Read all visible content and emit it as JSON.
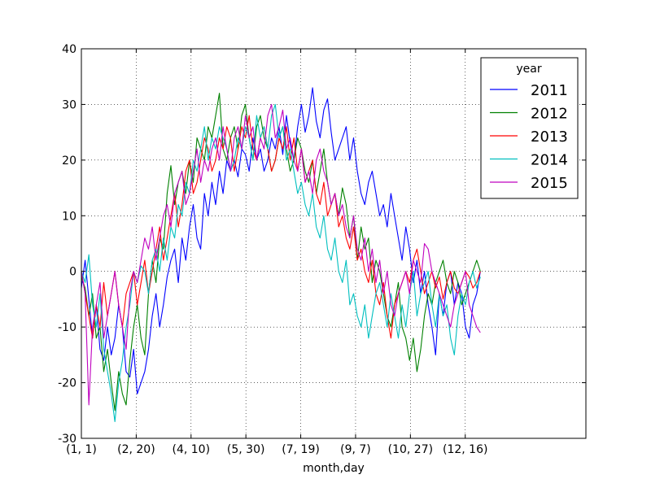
{
  "chart_data": {
    "type": "line",
    "xlabel": "month,day",
    "ylabel": "",
    "title": "",
    "ylim": [
      -30,
      40
    ],
    "yticks": [
      -30,
      -20,
      -10,
      0,
      10,
      20,
      30,
      40
    ],
    "x_day_range": [
      1,
      461
    ],
    "x_ticks": [
      {
        "label": "(1, 1)",
        "day": 1
      },
      {
        "label": "(2, 20)",
        "day": 51
      },
      {
        "label": "(4, 10)",
        "day": 101
      },
      {
        "label": "(5, 30)",
        "day": 151
      },
      {
        "label": "(7, 19)",
        "day": 201
      },
      {
        "label": "(9, 7)",
        "day": 251
      },
      {
        "label": "(10, 27)",
        "day": 301
      },
      {
        "label": "(12, 16)",
        "day": 351
      }
    ],
    "grid": true,
    "legend": {
      "title": "year",
      "position": "top-right"
    },
    "series": [
      {
        "name": "2011",
        "color": "#0000ff",
        "values": [
          -3,
          2,
          -5,
          -12,
          -6,
          -14,
          -16,
          -10,
          -15,
          -12,
          -6,
          -10,
          -18,
          -19,
          -14,
          -22,
          -20,
          -18,
          -14,
          -8,
          -4,
          -10,
          -6,
          -1,
          2,
          4,
          -2,
          6,
          2,
          8,
          12,
          6,
          4,
          14,
          10,
          16,
          12,
          18,
          14,
          20,
          18,
          20,
          17,
          22,
          21,
          18,
          24,
          20,
          22,
          18,
          20,
          24,
          22,
          26,
          21,
          28,
          23,
          20,
          26,
          30,
          25,
          28,
          33,
          27,
          24,
          29,
          31,
          25,
          20,
          22,
          24,
          26,
          20,
          24,
          18,
          14,
          12,
          16,
          18,
          14,
          10,
          12,
          8,
          14,
          10,
          6,
          2,
          8,
          4,
          -2,
          2,
          -4,
          0,
          -6,
          -10,
          -15,
          -4,
          -8,
          -2,
          0,
          -6,
          -2,
          -4,
          -10,
          -12,
          -6,
          -4,
          0
        ]
      },
      {
        "name": "2012",
        "color": "#008000",
        "values": [
          -1,
          -3,
          -8,
          -4,
          -12,
          -10,
          -18,
          -14,
          -20,
          -25,
          -18,
          -22,
          -24,
          -16,
          -10,
          -6,
          -12,
          -15,
          -4,
          2,
          -2,
          6,
          4,
          14,
          19,
          12,
          16,
          18,
          14,
          20,
          16,
          24,
          22,
          20,
          26,
          24,
          28,
          32,
          22,
          20,
          24,
          26,
          22,
          28,
          30,
          24,
          20,
          26,
          28,
          24,
          22,
          18,
          20,
          24,
          26,
          22,
          18,
          20,
          24,
          22,
          18,
          16,
          20,
          14,
          18,
          22,
          16,
          12,
          14,
          10,
          15,
          12,
          6,
          10,
          2,
          8,
          4,
          6,
          -2,
          2,
          0,
          -4,
          -8,
          -10,
          -6,
          -2,
          -10,
          -12,
          -16,
          -12,
          -18,
          -14,
          -8,
          -4,
          -6,
          -2,
          0,
          2,
          -2,
          -4,
          0,
          -2,
          -6,
          -4,
          -2,
          0,
          2,
          0
        ]
      },
      {
        "name": "2013",
        "color": "#ff0000",
        "values": [
          0,
          -4,
          -8,
          -12,
          -6,
          -10,
          -2,
          -8,
          -4,
          0,
          -6,
          -10,
          -4,
          -2,
          0,
          -6,
          -2,
          2,
          -4,
          0,
          4,
          8,
          2,
          6,
          10,
          14,
          8,
          12,
          18,
          20,
          14,
          16,
          20,
          24,
          22,
          18,
          20,
          24,
          22,
          26,
          24,
          18,
          22,
          26,
          24,
          28,
          22,
          20,
          24,
          26,
          22,
          18,
          20,
          24,
          22,
          26,
          20,
          24,
          18,
          22,
          16,
          18,
          20,
          14,
          12,
          16,
          10,
          12,
          14,
          8,
          10,
          6,
          4,
          8,
          2,
          4,
          0,
          -2,
          2,
          -4,
          -6,
          -2,
          -8,
          -12,
          -6,
          -4,
          -2,
          0,
          -2,
          2,
          4,
          0,
          -4,
          -2,
          0,
          -3,
          -1,
          -5,
          -2,
          0,
          -3,
          -4,
          -2,
          0,
          -1,
          -3,
          -2,
          0
        ]
      },
      {
        "name": "2014",
        "color": "#00bfbf",
        "values": [
          0,
          -2,
          3,
          -6,
          -10,
          -4,
          -14,
          -18,
          -22,
          -27,
          -20,
          -16,
          -10,
          -6,
          0,
          -2,
          1,
          0,
          -4,
          2,
          4,
          0,
          6,
          2,
          8,
          6,
          12,
          10,
          16,
          14,
          20,
          18,
          22,
          26,
          20,
          24,
          22,
          26,
          24,
          22,
          18,
          20,
          24,
          22,
          26,
          24,
          20,
          28,
          24,
          26,
          22,
          28,
          30,
          24,
          26,
          20,
          22,
          18,
          14,
          16,
          12,
          10,
          14,
          8,
          6,
          10,
          4,
          2,
          6,
          0,
          -2,
          2,
          -6,
          -4,
          -8,
          -10,
          -6,
          -12,
          -8,
          -4,
          -2,
          -6,
          -10,
          -4,
          -8,
          -12,
          -6,
          -10,
          -4,
          0,
          -8,
          -4,
          -2,
          0,
          -6,
          -10,
          -4,
          -8,
          -6,
          -12,
          -15,
          -8,
          -4,
          -6,
          -2,
          0,
          -3,
          -1
        ]
      },
      {
        "name": "2015",
        "color": "#bf00bf",
        "values": [
          0,
          -4,
          -24,
          -10,
          -6,
          -2,
          -12,
          -8,
          -4,
          0,
          -6,
          -10,
          -14,
          -4,
          0,
          -2,
          2,
          6,
          4,
          8,
          2,
          6,
          10,
          12,
          8,
          14,
          16,
          18,
          12,
          14,
          18,
          22,
          16,
          20,
          18,
          22,
          24,
          20,
          26,
          22,
          18,
          24,
          26,
          22,
          28,
          24,
          26,
          20,
          24,
          22,
          28,
          30,
          24,
          26,
          29,
          22,
          24,
          20,
          18,
          22,
          16,
          18,
          14,
          20,
          22,
          18,
          16,
          12,
          14,
          10,
          12,
          8,
          6,
          10,
          4,
          2,
          6,
          0,
          4,
          -2,
          2,
          -4,
          0,
          -6,
          -8,
          -4,
          -2,
          0,
          -4,
          2,
          0,
          -2,
          5,
          4,
          0,
          -2,
          -4,
          -6,
          -8,
          -10,
          -6,
          -4,
          -2,
          0,
          -6,
          -8,
          -10,
          -11
        ]
      }
    ]
  }
}
